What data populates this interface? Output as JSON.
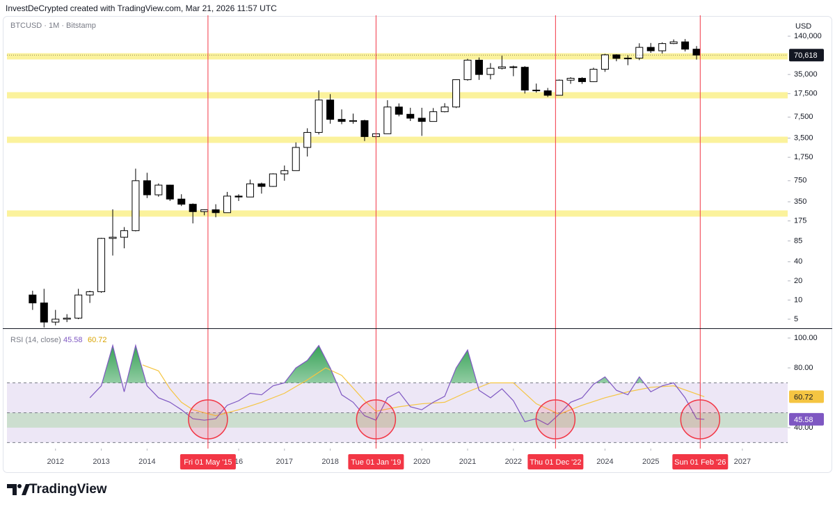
{
  "header": {
    "caption": "InvestDeCrypted created with TradingView.com, Mar 21, 2026 11:57 UTC"
  },
  "footer": {
    "brand": "TradingView"
  },
  "chart_data": [
    {
      "type": "candlestick",
      "title": "BTCUSD · 1M · Bitstamp",
      "y_axis_label": "USD",
      "log_scale": true,
      "xlim": [
        2010.94,
        2027.99
      ],
      "ylim": [
        3.6,
        298000
      ],
      "yticks": [
        5,
        10,
        20,
        40,
        85,
        175,
        350,
        750,
        {
          "value": 1750,
          "label": "1,750"
        },
        {
          "value": 3500,
          "label": "3,500"
        },
        {
          "value": 7500,
          "label": "7,500"
        },
        {
          "value": 17500,
          "label": "17,500"
        },
        {
          "value": 35000,
          "label": "35,000"
        },
        {
          "value": 140000,
          "label": "140,000"
        }
      ],
      "x": [
        2011.5,
        2011.75,
        2012,
        2012.25,
        2012.5,
        2012.75,
        2013,
        2013.25,
        2013.5,
        2013.75,
        2014,
        2014.25,
        2014.5,
        2014.75,
        2015,
        2015.25,
        2015.5,
        2015.75,
        2016,
        2016.25,
        2016.5,
        2016.75,
        2017,
        2017.25,
        2017.5,
        2017.75,
        2018,
        2018.25,
        2018.5,
        2018.75,
        2019,
        2019.25,
        2019.5,
        2019.75,
        2020,
        2020.25,
        2020.5,
        2020.75,
        2021,
        2021.25,
        2021.5,
        2021.75,
        2022,
        2022.25,
        2022.5,
        2022.75,
        2023,
        2023.25,
        2023.5,
        2023.75,
        2024,
        2024.25,
        2024.5,
        2024.75,
        2025,
        2025.25,
        2025.5,
        2025.75,
        2026
      ],
      "open": [
        12,
        9,
        4.5,
        5,
        5.2,
        12,
        13.5,
        93,
        97,
        123,
        750,
        450,
        640,
        386,
        320,
        245,
        262,
        236,
        430,
        416,
        670,
        610,
        960,
        1080,
        2500,
        4300,
        13900,
        6900,
        6400,
        6600,
        3700,
        4100,
        10800,
        8300,
        7200,
        6400,
        9100,
        10800,
        29000,
        58800,
        35000,
        43800,
        46200,
        45500,
        19900,
        19400,
        16500,
        28500,
        30500,
        27000,
        42300,
        71300,
        62700,
        63300,
        93400,
        82500,
        107200,
        114000,
        87500
      ],
      "high": [
        14,
        15,
        7,
        6,
        15,
        14,
        95,
        266,
        140,
        1160,
        1000,
        680,
        650,
        460,
        330,
        265,
        320,
        500,
        460,
        780,
        700,
        980,
        1300,
        3000,
        5000,
        19700,
        17200,
        9900,
        8500,
        6800,
        4200,
        13800,
        12300,
        10500,
        10500,
        10400,
        12400,
        29300,
        61800,
        64800,
        52900,
        69000,
        48200,
        47400,
        25200,
        21500,
        29200,
        31800,
        31800,
        44700,
        73800,
        72800,
        70000,
        108300,
        109500,
        111900,
        124500,
        126200,
        97900
      ],
      "low": [
        7,
        3.7,
        4,
        4.5,
        5,
        9,
        13,
        50,
        65,
        120,
        400,
        420,
        360,
        300,
        160,
        215,
        200,
        235,
        360,
        415,
        470,
        600,
        750,
        1080,
        1800,
        4000,
        5900,
        5800,
        5900,
        3150,
        3350,
        4100,
        7700,
        6500,
        3800,
        6400,
        8900,
        10400,
        28000,
        28800,
        29300,
        42000,
        32900,
        17600,
        18200,
        15500,
        16500,
        25000,
        24900,
        26600,
        38500,
        56500,
        49000,
        58900,
        76600,
        74500,
        105000,
        80500,
        60000
      ],
      "close": [
        9,
        4.5,
        5,
        5.2,
        12,
        13.5,
        93,
        97,
        123,
        750,
        450,
        640,
        386,
        320,
        245,
        262,
        236,
        430,
        416,
        670,
        610,
        960,
        1080,
        2500,
        4300,
        13900,
        6900,
        6400,
        6600,
        3700,
        4100,
        10800,
        8300,
        7200,
        6400,
        9100,
        10800,
        29000,
        58800,
        35000,
        43800,
        46200,
        45500,
        19900,
        19400,
        16500,
        28500,
        30500,
        27000,
        42300,
        71300,
        62700,
        63300,
        93400,
        82500,
        107200,
        114000,
        87500,
        70618
      ],
      "up_color": "#ffffff",
      "down_color": "#000000",
      "levels": [
        67600,
        16500,
        3300,
        229
      ],
      "level_color": "#fbf29c",
      "last_price": {
        "value": 70618,
        "label": "70,618"
      }
    },
    {
      "type": "line",
      "title": "RSI (14, close)",
      "xlim": [
        2010.94,
        2027.99
      ],
      "ylim": [
        26,
        105.6
      ],
      "yticks": [
        {
          "value": 100,
          "label": "100.00"
        },
        {
          "value": 80,
          "label": "80.00"
        },
        {
          "value": 40,
          "label": "40.00"
        }
      ],
      "xticks": [
        2012,
        2013,
        2014,
        {
          "value": 2016,
          "label": "16"
        },
        2017,
        2018,
        2020,
        2021,
        2022,
        2024,
        2025,
        2027
      ],
      "levels": [
        70,
        50,
        30
      ],
      "band": [
        30,
        70
      ],
      "band_color": "#ede7f6",
      "zone": [
        40,
        50
      ],
      "zone_color": "#c5dcc8",
      "overbought_color": "#2e9e4f",
      "series": [
        {
          "color": "#7e57c2",
          "x": [
            2012.75,
            2013,
            2013.25,
            2013.5,
            2013.75,
            2014,
            2014.25,
            2014.5,
            2014.75,
            2015,
            2015.25,
            2015.5,
            2015.75,
            2016,
            2016.25,
            2016.5,
            2016.75,
            2017,
            2017.25,
            2017.5,
            2017.75,
            2018,
            2018.25,
            2018.5,
            2018.75,
            2019,
            2019.25,
            2019.5,
            2019.75,
            2020,
            2020.25,
            2020.5,
            2020.75,
            2021,
            2021.25,
            2021.5,
            2021.75,
            2022,
            2022.25,
            2022.5,
            2022.75,
            2023,
            2023.25,
            2023.5,
            2023.75,
            2024,
            2024.25,
            2024.5,
            2024.75,
            2025,
            2025.25,
            2025.5,
            2025.75,
            2026,
            2026.17
          ],
          "values": [
            60,
            68,
            95,
            64,
            95,
            68,
            60,
            57,
            52,
            46,
            45,
            46,
            55,
            58,
            63,
            62,
            68,
            70,
            80,
            85,
            95,
            80,
            62,
            57,
            48,
            45,
            60,
            64,
            54,
            52,
            57,
            61,
            80,
            92,
            65,
            60,
            66,
            58,
            44,
            46,
            42,
            49,
            57,
            60,
            69,
            74,
            65,
            62,
            74,
            64,
            68,
            70,
            60,
            46,
            45.58
          ]
        },
        {
          "color": "#f5c542",
          "x": [
            2013.9,
            2014.25,
            2014.5,
            2014.75,
            2015,
            2015.5,
            2016,
            2016.5,
            2017,
            2017.5,
            2017.9,
            2018.25,
            2018.75,
            2019,
            2019.5,
            2020,
            2020.5,
            2021,
            2021.5,
            2022,
            2022.5,
            2023,
            2023.5,
            2024,
            2024.5,
            2025,
            2025.5,
            2026.17
          ],
          "values": [
            82,
            78,
            66,
            57,
            52,
            48,
            52,
            57,
            63,
            72,
            80,
            75,
            58,
            51,
            54,
            56,
            57,
            64,
            70,
            70,
            56,
            49,
            55,
            60,
            64,
            67,
            68,
            60.72
          ]
        }
      ],
      "events": [
        {
          "value": 2015.33,
          "label": "Fri 01 May '15"
        },
        {
          "value": 2019.0,
          "label": "Tue 01 Jan '19"
        },
        {
          "value": 2022.92,
          "label": "Thu 01 Dec '22"
        },
        {
          "value": 2026.08,
          "label": "Sun 01 Feb '26"
        }
      ],
      "event_color": "#f23645"
    }
  ]
}
